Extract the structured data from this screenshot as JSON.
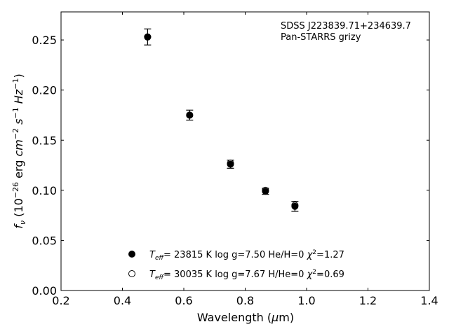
{
  "chart_data": {
    "type": "scatter",
    "annotation": {
      "line1": "SDSS J223839.71+234639.7",
      "line2": "Pan-STARRS grizy"
    },
    "xlabel": "Wavelength (μm)",
    "ylabel": "f_ν (10^-26 erg cm^-2 s^-1 Hz^-1)",
    "xlim": [
      0.2,
      1.4
    ],
    "ylim": [
      0.0,
      0.278
    ],
    "xticks": [
      "0.2",
      "0.4",
      "0.6",
      "0.8",
      "1.0",
      "1.2",
      "1.4"
    ],
    "yticks": [
      "0.00",
      "0.05",
      "0.10",
      "0.15",
      "0.20",
      "0.25"
    ],
    "grid": false,
    "series": [
      {
        "name": "Teff= 23815 K  log g=7.50  He/H=0  χ²=1.27",
        "marker": "filled",
        "x": [
          0.482,
          0.619,
          0.752,
          0.866,
          0.962
        ],
        "y": [
          0.253,
          0.175,
          0.126,
          0.099,
          0.084
        ],
        "yerr": [
          0.008,
          0.005,
          0.004,
          0.003,
          0.005
        ]
      },
      {
        "name": "Teff= 30035 K  log g=7.67  H/He=0  χ²=0.69",
        "marker": "open",
        "x": [
          0.482,
          0.619,
          0.752,
          0.866,
          0.962
        ],
        "y": [
          0.253,
          0.175,
          0.127,
          0.1,
          0.085
        ]
      }
    ],
    "legend": [
      {
        "teff": "23815 K",
        "rest": "log g=7.50  He/H=0",
        "chi": "1.27"
      },
      {
        "teff": "30035 K",
        "rest": "log g=7.67  H/He=0",
        "chi": "0.69"
      }
    ],
    "legend_location": "lower center",
    "colors": {
      "marker": "#000000",
      "axes": "#000000",
      "background": "#ffffff"
    }
  }
}
